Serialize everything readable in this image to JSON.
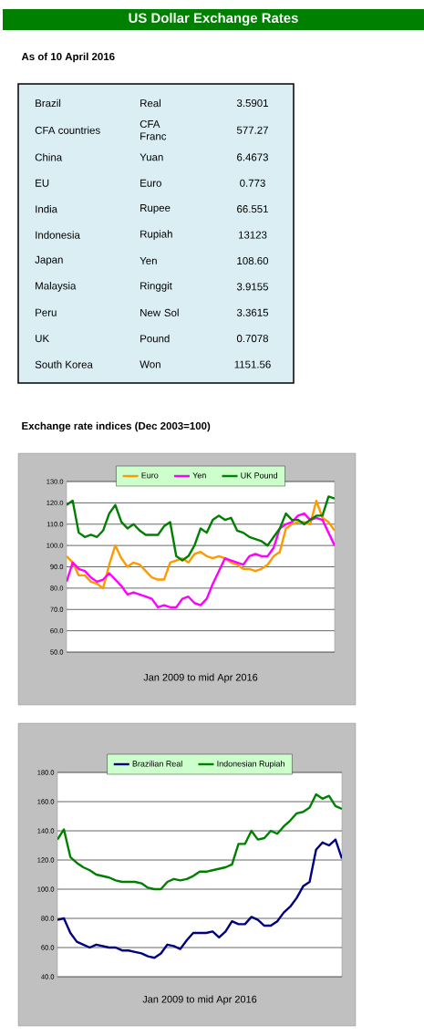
{
  "chart_data": [
    {
      "type": "other",
      "title": "US Dollar Exchange Rates",
      "subtitle": "As of 10 April 2016",
      "annotations": [
        "Brazil",
        "Real",
        "3.5901",
        "CFA countries",
        "CFA Franc",
        "577.27",
        "China",
        "Yuan",
        "6.4673",
        "EU",
        "Euro",
        "0.773",
        "India",
        "Rupee",
        "66.551",
        "Indonesia",
        "Rupiah",
        "13123",
        "Japan",
        "Yen",
        "108.60",
        "Malaysia",
        "Ringgit",
        "3.9155",
        "Peru",
        "New Sol",
        "3.3615",
        "UK",
        "Pound",
        "0.7078",
        "South Korea",
        "Won",
        "1151.56"
      ]
    },
    {
      "type": "line",
      "title": "Exchange rate indices (Dec 2003=100)",
      "xlabel": "Jan 2009 to mid Apr 2016",
      "categories": [
        null,
        null,
        null,
        null,
        null,
        null,
        null,
        null,
        null,
        null,
        null,
        null,
        null,
        null,
        null,
        null,
        null,
        null,
        null,
        null,
        null,
        null,
        null,
        null,
        null,
        null,
        null,
        null,
        null,
        null,
        null,
        null,
        null,
        null,
        null,
        null,
        null,
        null,
        null,
        null,
        null,
        null,
        null,
        null,
        null
      ],
      "series": [
        {
          "name": "Euro",
          "color": "#ff9900",
          "values": [
            95,
            92,
            86,
            86,
            83,
            82,
            80,
            91,
            100,
            94,
            90,
            92,
            91,
            88,
            85,
            84,
            84,
            92,
            93,
            94,
            92,
            96,
            97,
            95,
            94,
            95,
            94,
            92,
            91,
            89,
            89,
            88,
            89,
            91,
            95,
            97,
            108,
            110,
            111,
            111,
            110,
            121,
            113,
            111,
            107
          ]
        },
        {
          "name": "Yen",
          "color": "#ff00ff",
          "values": [
            83,
            92,
            89,
            88,
            85,
            83,
            84,
            87,
            84,
            81,
            77,
            78,
            77,
            76,
            75,
            71,
            72,
            71,
            71,
            75,
            76,
            73,
            72,
            75,
            82,
            88,
            94,
            93,
            92,
            91,
            95,
            96,
            95,
            95,
            99,
            108,
            110,
            111,
            114,
            115,
            112,
            113,
            112,
            106,
            100
          ]
        },
        {
          "name": "UK Pound",
          "color": "#008000",
          "values": [
            119,
            121,
            106,
            104,
            105,
            104,
            107,
            115,
            119,
            111,
            108,
            110,
            107,
            105,
            105,
            105,
            109,
            111,
            95,
            93,
            95,
            100,
            108,
            106,
            112,
            114,
            112,
            113,
            107,
            106,
            104,
            103,
            102,
            100,
            104,
            108,
            115,
            112,
            112,
            110,
            112,
            114,
            114,
            123,
            122
          ]
        }
      ],
      "ylim": [
        50,
        130
      ],
      "yticks": [
        {
          "value": 50,
          "label": "50.0"
        },
        {
          "value": 60,
          "label": "60.0"
        },
        {
          "value": 70,
          "label": "70.0"
        },
        {
          "value": 80,
          "label": "80.0"
        },
        {
          "value": 90,
          "label": "90.0"
        },
        {
          "value": 100,
          "label": "100.0"
        },
        {
          "value": 110,
          "label": "110.0"
        },
        {
          "value": 120,
          "label": "120.0"
        },
        {
          "value": 130,
          "label": "130.0"
        }
      ],
      "grid": "y",
      "legend": "top"
    },
    {
      "type": "line",
      "xlabel": "Jan 2009 to mid Apr 2016",
      "categories": [
        null,
        null,
        null,
        null,
        null,
        null,
        null,
        null,
        null,
        null,
        null,
        null,
        null,
        null,
        null,
        null,
        null,
        null,
        null,
        null,
        null,
        null,
        null,
        null,
        null,
        null,
        null,
        null,
        null,
        null,
        null,
        null,
        null,
        null,
        null,
        null,
        null,
        null,
        null,
        null,
        null,
        null,
        null,
        null,
        null
      ],
      "series": [
        {
          "name": "Brazilian Real",
          "color": "#000080",
          "values": [
            79,
            80,
            70,
            64,
            62,
            60,
            62,
            61,
            60,
            60,
            58,
            58,
            57,
            56,
            54,
            53,
            56,
            62,
            61,
            59,
            65,
            70,
            70,
            70,
            71,
            67,
            71,
            78,
            76,
            76,
            81,
            79,
            75,
            75,
            78,
            84,
            88,
            94,
            102,
            105,
            127,
            132,
            130,
            134,
            121
          ]
        },
        {
          "name": "Indonesian Rupiah",
          "color": "#008000",
          "values": [
            134,
            141,
            122,
            118,
            115,
            113,
            110,
            109,
            108,
            106,
            105,
            105,
            105,
            104,
            101,
            100,
            100,
            105,
            107,
            106,
            107,
            109,
            112,
            112,
            113,
            114,
            115,
            117,
            131,
            131,
            140,
            134,
            135,
            140,
            138,
            143,
            147,
            152,
            153,
            156,
            165,
            162,
            164,
            157,
            155
          ]
        }
      ],
      "ylim": [
        40,
        180
      ],
      "yticks": [
        {
          "value": 40,
          "label": "40.0"
        },
        {
          "value": 60,
          "label": "60.0"
        },
        {
          "value": 80,
          "label": "80.0"
        },
        {
          "value": 100,
          "label": "100.0"
        },
        {
          "value": 120,
          "label": "120.0"
        },
        {
          "value": 140,
          "label": "140.0"
        },
        {
          "value": 160,
          "label": "160.0"
        },
        {
          "value": 180,
          "label": "180.0"
        }
      ],
      "grid": "y",
      "legend": "top"
    }
  ]
}
